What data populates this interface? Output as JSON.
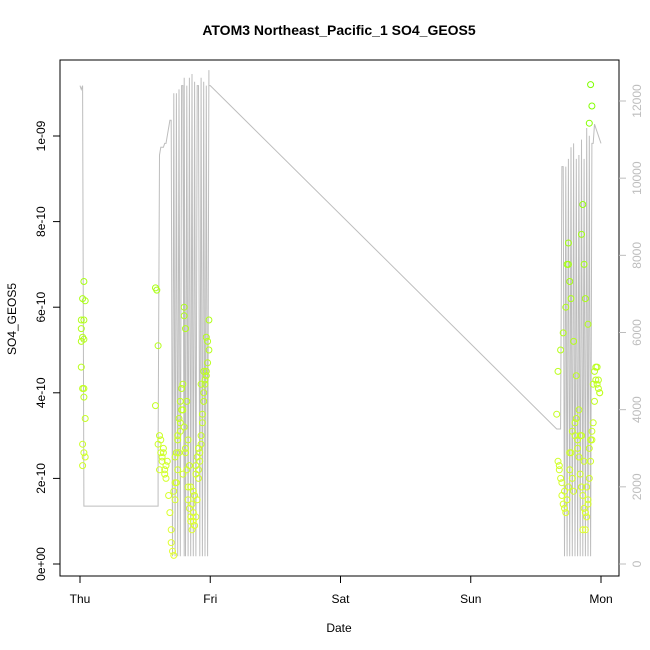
{
  "chart_data": {
    "type": "scatter",
    "title": "ATOM3 Northeast_Pacific_1 SO4_GEOS5",
    "xlabel": "Date",
    "ylabel": "SO4_GEOS5",
    "x_ticks": [
      "Thu",
      "Fri",
      "Sat",
      "Sun",
      "Mon"
    ],
    "x_range": [
      0,
      4
    ],
    "ylim": [
      0,
      1.1e-09
    ],
    "y_ticks": [
      "0e+00",
      "2e-10",
      "4e-10",
      "6e-10",
      "8e-10",
      "1e-09"
    ],
    "y_right_ticks": [
      "0",
      "2000",
      "4000",
      "6000",
      "8000",
      "10000",
      "12000"
    ],
    "y_right_range": [
      0,
      12500
    ],
    "grid": false,
    "series": [
      {
        "kind": "points",
        "marker": "open-circle",
        "color_low": "#e6ff33",
        "color_high": "#7fff00",
        "x": [
          0.01,
          0.02,
          0.01,
          0.03,
          0.01,
          0.02,
          0.03,
          0.04,
          0.02,
          0.03,
          0.04,
          0.01,
          0.02,
          0.03,
          0.02,
          0.03,
          0.04,
          0.03,
          0.58,
          0.59,
          0.6,
          0.58,
          0.61,
          0.6,
          0.62,
          0.63,
          0.61,
          0.64,
          0.62,
          0.63,
          0.65,
          0.66,
          0.64,
          0.67,
          0.65,
          0.66,
          0.68,
          0.69,
          0.7,
          0.7,
          0.71,
          0.72,
          0.73,
          0.74,
          0.75,
          0.76,
          0.77,
          0.78,
          0.79,
          0.8,
          0.8,
          0.81,
          0.82,
          0.83,
          0.84,
          0.85,
          0.86,
          0.87,
          0.88,
          0.89,
          0.9,
          0.91,
          0.92,
          0.93,
          0.94,
          0.95,
          0.96,
          0.97,
          0.98,
          0.99,
          0.72,
          0.73,
          0.74,
          0.75,
          0.76,
          0.77,
          0.78,
          0.79,
          0.8,
          0.81,
          0.82,
          0.83,
          0.84,
          0.85,
          0.86,
          0.87,
          0.88,
          0.89,
          0.9,
          0.91,
          0.92,
          0.93,
          0.94,
          0.95,
          0.96,
          0.97,
          0.98,
          0.99,
          0.73,
          0.75,
          0.77,
          0.79,
          0.81,
          0.83,
          0.85,
          0.87,
          0.89,
          0.91,
          0.93,
          0.95,
          0.97,
          3.66,
          3.67,
          3.68,
          3.69,
          3.7,
          3.71,
          3.72,
          3.73,
          3.74,
          3.75,
          3.76,
          3.77,
          3.78,
          3.79,
          3.8,
          3.81,
          3.82,
          3.83,
          3.84,
          3.85,
          3.86,
          3.87,
          3.88,
          3.89,
          3.9,
          3.91,
          3.92,
          3.93,
          3.94,
          3.95,
          3.96,
          3.97,
          3.98,
          3.99,
          3.67,
          3.69,
          3.71,
          3.73,
          3.75,
          3.77,
          3.79,
          3.81,
          3.83,
          3.85,
          3.87,
          3.89,
          3.91,
          3.93,
          3.95,
          3.97,
          3.99,
          3.68,
          3.7,
          3.72,
          3.74,
          3.76,
          3.78,
          3.8,
          3.82,
          3.84,
          3.86,
          3.88,
          3.9,
          3.92,
          3.94,
          3.96,
          3.98,
          3.74,
          3.75,
          3.76,
          3.85,
          3.86,
          3.87,
          3.88,
          3.9,
          3.91,
          3.92,
          3.93
        ],
        "y": [
          5.7e-10,
          5.3e-10,
          5.2e-10,
          6.6e-10,
          4.6e-10,
          4.1e-10,
          3.9e-10,
          3.4e-10,
          2.8e-10,
          2.6e-10,
          2.5e-10,
          5.5e-10,
          6.2e-10,
          5.7e-10,
          2.3e-10,
          4.1e-10,
          6.15e-10,
          5.25e-10,
          6.45e-10,
          6.4e-10,
          5.1e-10,
          3.7e-10,
          3e-10,
          2.8e-10,
          2.6e-10,
          2.4e-10,
          2.2e-10,
          2.7e-10,
          2.9e-10,
          2.5e-10,
          2.1e-10,
          2.3e-10,
          2.6e-10,
          2.4e-10,
          2.2e-10,
          2e-10,
          1.6e-10,
          1.2e-10,
          8e-11,
          5e-11,
          3e-11,
          2e-11,
          1.5e-10,
          1.9e-10,
          2.2e-10,
          2.6e-10,
          3.1e-10,
          3.6e-10,
          4.2e-10,
          5.8e-10,
          6e-10,
          5.5e-10,
          3.8e-10,
          2.9e-10,
          2.3e-10,
          1.8e-10,
          1.4e-10,
          1e-10,
          9e-11,
          1.1e-10,
          1.5e-10,
          2e-10,
          2.4e-10,
          2.8e-10,
          3.3e-10,
          3.8e-10,
          4.2e-10,
          4.5e-10,
          5.2e-10,
          5.7e-10,
          1.7e-10,
          1.9e-10,
          2.6e-10,
          3e-10,
          3.4e-10,
          3.8e-10,
          4.1e-10,
          3.6e-10,
          3.2e-10,
          2.7e-10,
          2.2e-10,
          1.8e-10,
          1.3e-10,
          1e-10,
          8e-11,
          1.2e-10,
          1.6e-10,
          2.1e-10,
          2.5e-10,
          2.2e-10,
          2.6e-10,
          3e-10,
          3.5e-10,
          4e-10,
          4.3e-10,
          4.4e-10,
          4.7e-10,
          5e-10,
          2.5e-10,
          2.9e-10,
          3.3e-10,
          2.1e-10,
          2.6e-10,
          1.5e-10,
          1.1e-10,
          1.7e-10,
          2.3e-10,
          2.7e-10,
          4.2e-10,
          4.5e-10,
          5.3e-10,
          3.5e-10,
          2.4e-10,
          2.2e-10,
          2e-10,
          1.6e-10,
          1.4e-10,
          1.3e-10,
          1.2e-10,
          1.5e-10,
          1.8e-10,
          2.2e-10,
          2.6e-10,
          2e-10,
          1.7e-10,
          3e-10,
          3.4e-10,
          2.9e-10,
          2.5e-10,
          2.1e-10,
          1.8e-10,
          1.6e-10,
          1.3e-10,
          8e-11,
          1.1e-10,
          1.5e-10,
          2e-10,
          2.4e-10,
          2.9e-10,
          3.3e-10,
          3.8e-10,
          4.3e-10,
          4.6e-10,
          4.1e-10,
          4e-10,
          4.5e-10,
          5e-10,
          5.4e-10,
          6e-10,
          7e-10,
          6.2e-10,
          5.2e-10,
          4.4e-10,
          3.6e-10,
          3e-10,
          2.4e-10,
          1.8e-10,
          2.7e-10,
          3.1e-10,
          4.5e-10,
          4.2e-10,
          4e-10,
          2.3e-10,
          1.9e-10,
          1.7e-10,
          1.5e-10,
          2.6e-10,
          3.1e-10,
          3.3e-10,
          2.7e-10,
          3e-10,
          8e-11,
          1.2e-10,
          1.4e-10,
          2.9e-10,
          4.2e-10,
          4.6e-10,
          4.3e-10,
          7e-10,
          7.5e-10,
          6.6e-10,
          7.7e-10,
          8.4e-10,
          7e-10,
          6.2e-10,
          5.6e-10,
          1.03e-09,
          1.12e-09,
          1.07e-09
        ],
        "y_right": [],
        "note": ""
      },
      {
        "kind": "line",
        "color": "#bdbdbd",
        "axis": "right",
        "x": [
          0.0,
          0.01,
          0.02,
          0.03,
          0.6,
          0.6,
          0.61,
          0.62,
          0.64,
          0.65,
          0.66,
          0.69,
          0.7,
          0.71,
          0.72,
          0.73,
          0.74,
          0.75,
          0.76,
          0.77,
          0.78,
          0.79,
          0.8,
          0.8,
          0.81,
          0.82,
          0.83,
          0.84,
          0.85,
          0.86,
          0.87,
          0.88,
          0.89,
          0.9,
          0.91,
          0.92,
          0.93,
          0.94,
          0.95,
          0.96,
          0.97,
          0.98,
          0.99,
          0.99,
          1.0,
          3.66,
          3.69,
          3.7,
          3.71,
          3.72,
          3.73,
          3.74,
          3.75,
          3.76,
          3.77,
          3.78,
          3.79,
          3.8,
          3.81,
          3.82,
          3.83,
          3.84,
          3.85,
          3.86,
          3.87,
          3.88,
          3.89,
          3.9,
          3.91,
          3.92,
          3.93,
          3.94,
          3.95,
          3.96,
          3.97,
          3.98,
          3.99,
          4.0
        ],
        "y": [
          12400,
          12300,
          12400,
          1500,
          1500,
          3000,
          10600,
          10800,
          10800,
          10900,
          10900,
          11500,
          11500,
          200,
          12200,
          200,
          12200,
          200,
          12300,
          200,
          12400,
          12400,
          200,
          12600,
          200,
          12400,
          200,
          12600,
          200,
          12700,
          200,
          12500,
          200,
          12400,
          12400,
          200,
          12600,
          200,
          12500,
          200,
          12400,
          200,
          12800,
          12400,
          12400,
          3500,
          3500,
          10300,
          10300,
          200,
          10300,
          200,
          10500,
          200,
          10800,
          200,
          10900,
          200,
          10500,
          200,
          10600,
          200,
          11000,
          200,
          10500,
          200,
          11300,
          200,
          11100,
          200,
          10900,
          10900,
          11400,
          11300,
          11200,
          11100,
          11000,
          10900
        ]
      }
    ]
  }
}
